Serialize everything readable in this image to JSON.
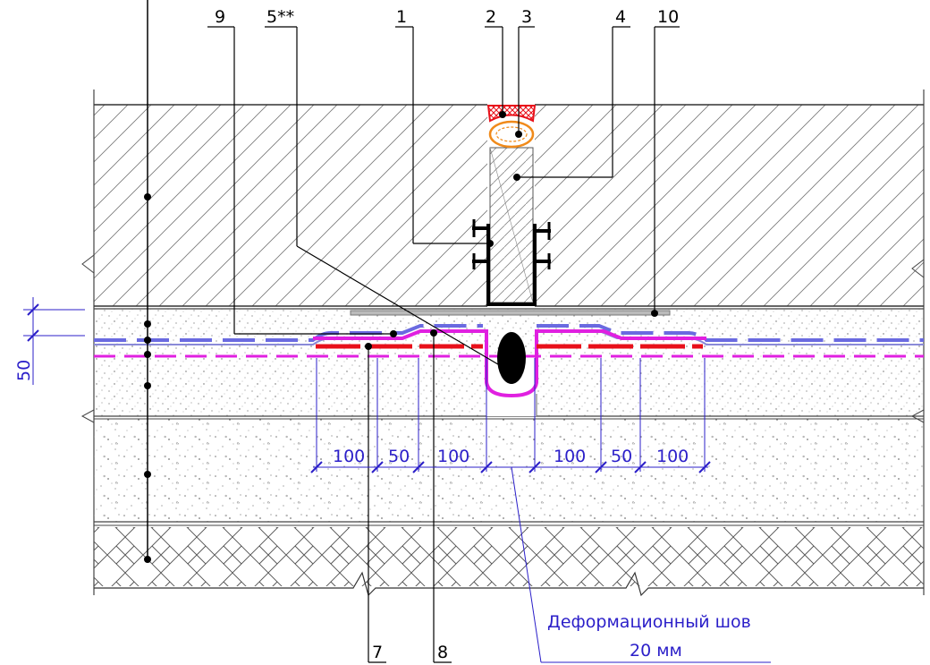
{
  "callouts": {
    "c1": "1",
    "c2": "2",
    "c3": "3",
    "c4": "4",
    "c5": "5**",
    "c7": "7",
    "c8": "8",
    "c9": "9",
    "c10": "10"
  },
  "dimensions": {
    "vertical": "50",
    "d1": "100",
    "d2": "50",
    "d3": "100",
    "d4": "100",
    "d5": "50",
    "d6": "100"
  },
  "note": {
    "line1": "Деформационный шов",
    "line2": "20 мм"
  },
  "colors": {
    "dimension": "#2b1fc9",
    "membrane_red": "#e8101a",
    "membrane_magenta": "#e020e0",
    "membrane_blue": "#6a6ae0",
    "concrete_hatch": "#666666",
    "screed_dots": "#888888"
  },
  "icons": {
    "joint_cord": "black-oval-cord",
    "sealant": "red-hatched-sealant",
    "backer_rod": "orange-backer-rod",
    "waterstop": "steel-profile"
  }
}
